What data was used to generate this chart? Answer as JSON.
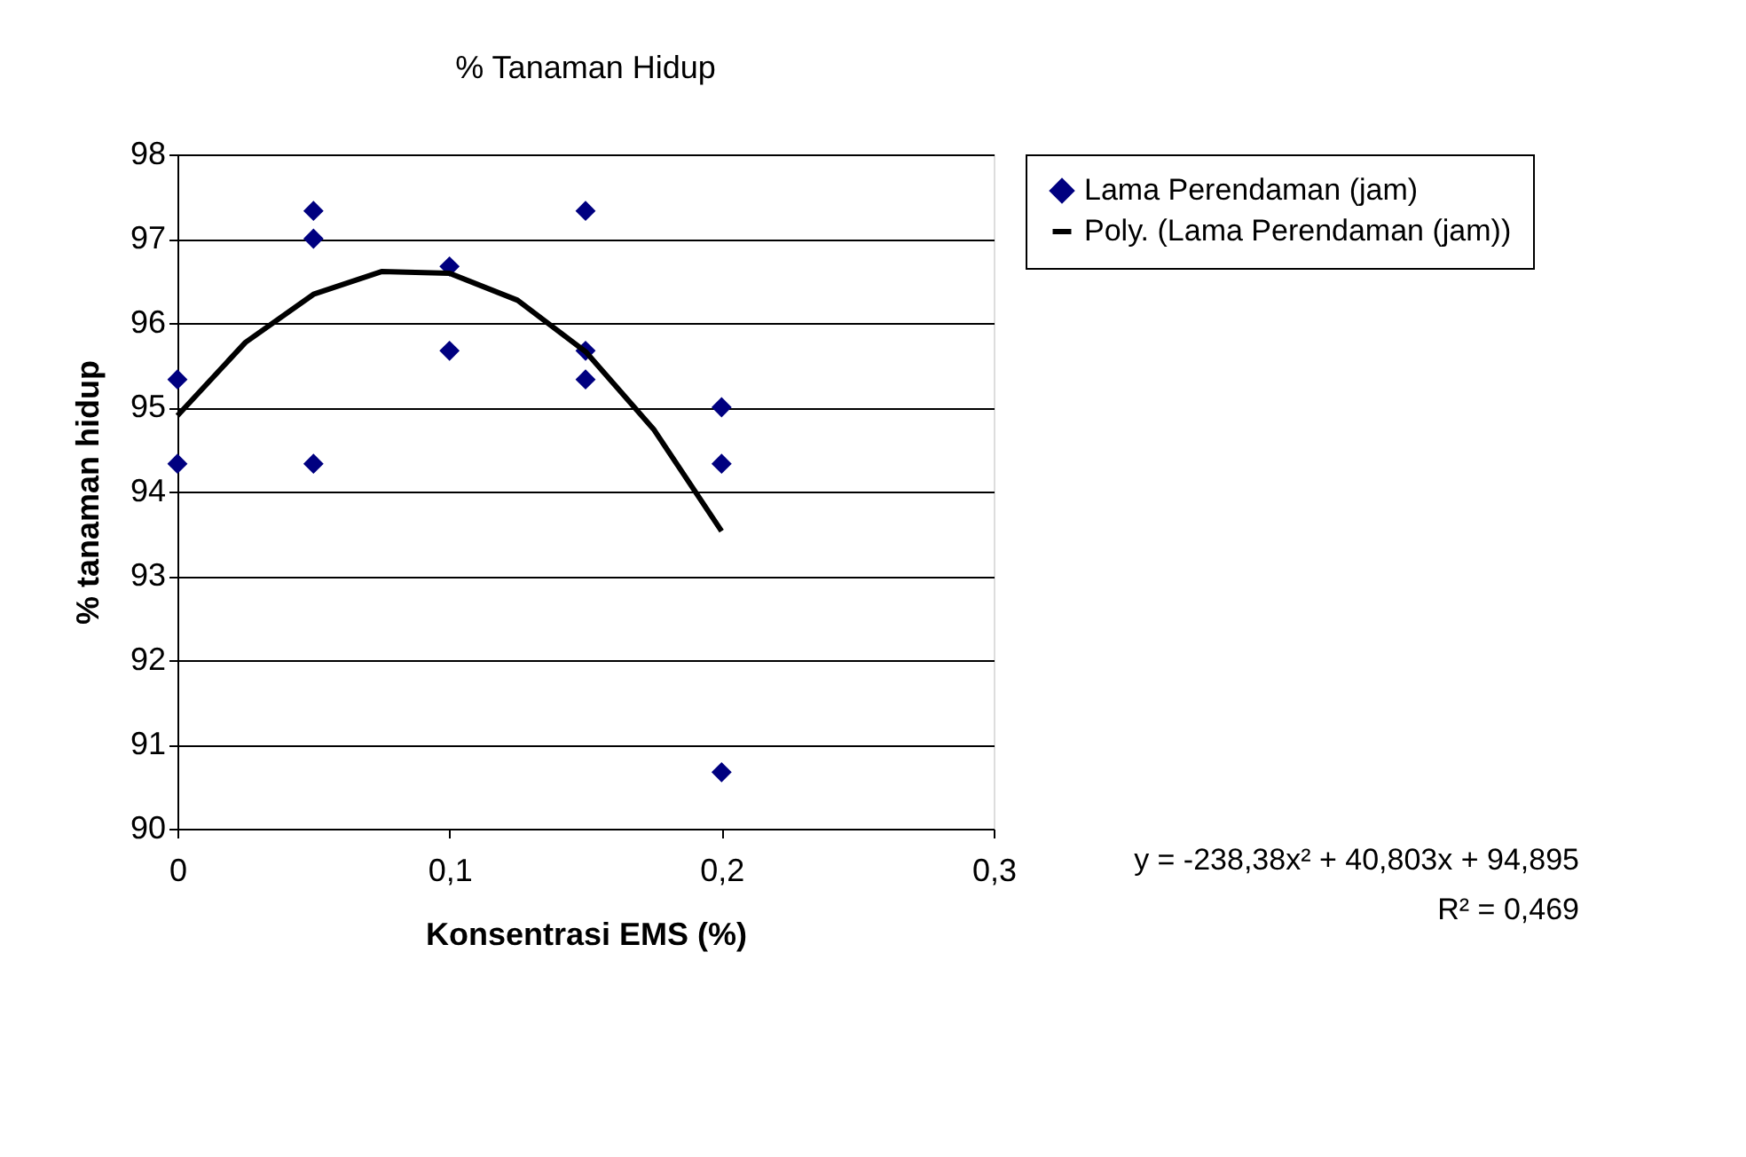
{
  "chart_data": {
    "type": "scatter",
    "title": "% Tanaman Hidup",
    "xlabel": "Konsentrasi EMS (%)",
    "ylabel": "% tanaman hidup",
    "xlim": [
      0,
      0.3
    ],
    "xticks": [
      0,
      {
        "value": 0.1,
        "label": "0,1"
      },
      {
        "value": 0.2,
        "label": "0,2"
      },
      {
        "value": 0.3,
        "label": "0,3"
      }
    ],
    "ylim": [
      90,
      98
    ],
    "yticks": [
      90,
      91,
      92,
      93,
      94,
      95,
      96,
      97,
      98
    ],
    "grid": "y",
    "legend": "right",
    "marker": "diamond",
    "series": [
      {
        "name": "Lama Perendaman (jam)",
        "type": "scatter",
        "color": "#000080",
        "x": [
          0,
          0,
          0.05,
          0.05,
          0.05,
          0.1,
          0.1,
          0.15,
          0.15,
          0.15,
          0.2,
          0.2,
          0.2
        ],
        "values": [
          95.33,
          94.33,
          97.33,
          97.0,
          94.33,
          96.67,
          95.67,
          97.33,
          95.67,
          95.33,
          95.0,
          94.33,
          90.67
        ]
      },
      {
        "name": "Poly. (Lama Perendaman (jam))",
        "type": "line",
        "marker": "none",
        "color": "#000000",
        "x": [
          0,
          0.025,
          0.05,
          0.075,
          0.1,
          0.125,
          0.15,
          0.175,
          0.2
        ],
        "values": [
          94.9,
          95.77,
          96.34,
          96.61,
          96.59,
          96.27,
          95.66,
          94.74,
          93.53
        ]
      }
    ],
    "annotations": [
      "y = -238,38x² + 40,803x + 94,895",
      "R² = 0,469"
    ]
  }
}
